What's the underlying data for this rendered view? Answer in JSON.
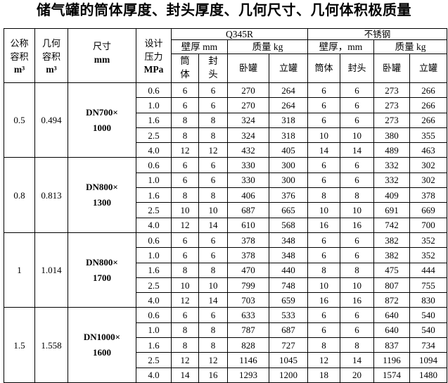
{
  "title": "储气罐的筒体厚度、封头厚度、几何尺寸、几何体积极质量",
  "headers": {
    "nominal_volume": [
      "公称",
      "容积",
      "m³"
    ],
    "geometric_volume": [
      "几何",
      "容积",
      "m³"
    ],
    "size": [
      "尺寸",
      "mm"
    ],
    "design_pressure": [
      "设计",
      "压力",
      "MPa"
    ],
    "q345r": "Q345R",
    "stainless": "不锈钢",
    "wall_mm": "壁厚 mm",
    "wall_mm_ss": "壁厚，mm",
    "mass_kg": "质量 kg",
    "shell_split": [
      "筒",
      "体"
    ],
    "head_split": [
      "封",
      "头"
    ],
    "shell": "筒体",
    "head": "封头",
    "horizontal": "卧罐",
    "vertical": "立罐"
  },
  "groups": [
    {
      "nominal": "0.5",
      "geometric": "0.494",
      "size": [
        "DN700×",
        "1000"
      ],
      "rows": [
        [
          "0.6",
          "6",
          "6",
          "270",
          "264",
          "6",
          "6",
          "273",
          "266"
        ],
        [
          "1.0",
          "6",
          "6",
          "270",
          "264",
          "6",
          "6",
          "273",
          "266"
        ],
        [
          "1.6",
          "8",
          "8",
          "324",
          "318",
          "6",
          "6",
          "273",
          "266"
        ],
        [
          "2.5",
          "8",
          "8",
          "324",
          "318",
          "10",
          "10",
          "380",
          "355"
        ],
        [
          "4.0",
          "12",
          "12",
          "432",
          "405",
          "14",
          "14",
          "489",
          "463"
        ]
      ]
    },
    {
      "nominal": "0.8",
      "geometric": "0.813",
      "size": [
        "DN800×",
        "1300"
      ],
      "rows": [
        [
          "0.6",
          "6",
          "6",
          "330",
          "300",
          "6",
          "6",
          "332",
          "302"
        ],
        [
          "1.0",
          "6",
          "6",
          "330",
          "300",
          "6",
          "6",
          "332",
          "302"
        ],
        [
          "1.6",
          "8",
          "8",
          "406",
          "376",
          "8",
          "8",
          "409",
          "378"
        ],
        [
          "2.5",
          "10",
          "10",
          "687",
          "665",
          "10",
          "10",
          "691",
          "669"
        ],
        [
          "4.0",
          "12",
          "14",
          "610",
          "568",
          "16",
          "16",
          "742",
          "700"
        ]
      ]
    },
    {
      "nominal": "1",
      "geometric": "1.014",
      "size": [
        "DN800×",
        "1700"
      ],
      "rows": [
        [
          "0.6",
          "6",
          "6",
          "378",
          "348",
          "6",
          "6",
          "382",
          "352"
        ],
        [
          "1.0",
          "6",
          "6",
          "378",
          "348",
          "6",
          "6",
          "382",
          "352"
        ],
        [
          "1.6",
          "8",
          "8",
          "470",
          "440",
          "8",
          "8",
          "475",
          "444"
        ],
        [
          "2.5",
          "10",
          "10",
          "799",
          "748",
          "10",
          "10",
          "807",
          "755"
        ],
        [
          "4.0",
          "12",
          "14",
          "703",
          "659",
          "16",
          "16",
          "872",
          "830"
        ]
      ]
    },
    {
      "nominal": "1.5",
      "geometric": "1.558",
      "size": [
        "DN1000×",
        "1600"
      ],
      "rows": [
        [
          "0.6",
          "6",
          "6",
          "633",
          "533",
          "6",
          "6",
          "640",
          "540"
        ],
        [
          "1.0",
          "8",
          "8",
          "787",
          "687",
          "6",
          "6",
          "640",
          "540"
        ],
        [
          "1.6",
          "8",
          "8",
          "828",
          "727",
          "8",
          "8",
          "837",
          "734"
        ],
        [
          "2.5",
          "12",
          "12",
          "1146",
          "1045",
          "12",
          "14",
          "1196",
          "1094"
        ],
        [
          "4.0",
          "14",
          "16",
          "1293",
          "1200",
          "18",
          "20",
          "1574",
          "1480"
        ]
      ]
    }
  ]
}
